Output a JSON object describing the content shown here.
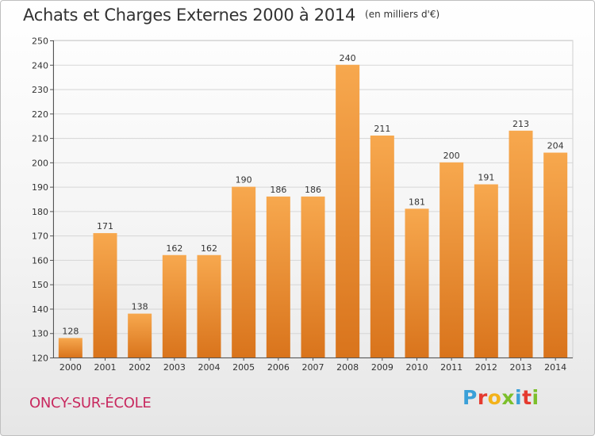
{
  "chart_data": {
    "type": "bar",
    "title": "Achats et Charges Externes 2000 à 2014",
    "unit_note": "(en milliers d'€)",
    "categories": [
      "2000",
      "2001",
      "2002",
      "2003",
      "2004",
      "2005",
      "2006",
      "2007",
      "2008",
      "2009",
      "2010",
      "2011",
      "2012",
      "2013",
      "2014"
    ],
    "values": [
      128,
      171,
      138,
      162,
      162,
      190,
      186,
      186,
      240,
      211,
      181,
      200,
      191,
      213,
      204
    ],
    "ylim": [
      120,
      250
    ],
    "yticks": [
      120,
      130,
      140,
      150,
      160,
      170,
      180,
      190,
      200,
      210,
      220,
      230,
      240,
      250
    ],
    "xlabel": "",
    "ylabel": "",
    "grid": true,
    "bar_color_top": "#f7a84e",
    "bar_color_bottom": "#d9741c"
  },
  "footer": {
    "place": "ONCY-SUR-ÉCOLE",
    "logo_letters": [
      {
        "ch": "P",
        "color": "#3aa0d8"
      },
      {
        "ch": "r",
        "color": "#e53a2f"
      },
      {
        "ch": "o",
        "color": "#f3b21a"
      },
      {
        "ch": "x",
        "color": "#7cbf2b"
      },
      {
        "ch": "i",
        "color": "#3aa0d8"
      },
      {
        "ch": "t",
        "color": "#e53a2f"
      },
      {
        "ch": "i",
        "color": "#7cbf2b"
      }
    ]
  }
}
